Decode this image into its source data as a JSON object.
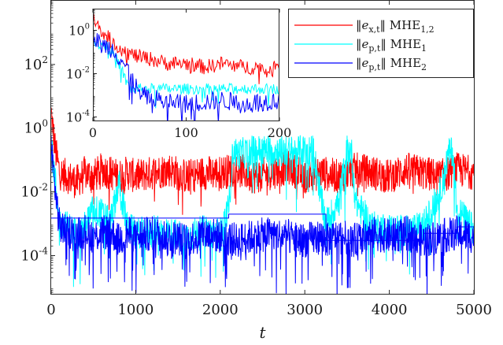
{
  "chart_data": [
    {
      "type": "line",
      "role": "main",
      "xlabel": "t",
      "ylabel": "",
      "xlim": [
        0,
        5000
      ],
      "ylim_log10": [
        -5.2,
        4
      ],
      "yscale": "log",
      "x_ticks": [
        "0",
        "1000",
        "2000",
        "3000",
        "4000",
        "5000"
      ],
      "y_ticks": [
        {
          "base": "10",
          "exp": "2"
        },
        {
          "base": "10",
          "exp": "0"
        },
        {
          "base": "10",
          "exp": "-2"
        },
        {
          "base": "10",
          "exp": "-4"
        }
      ],
      "grid": false,
      "legend_position": "top-right",
      "series": [
        {
          "name": "‖e_x,t‖ MHE_1,2",
          "color": "#ff0000",
          "x": [
            0,
            50,
            100,
            200,
            300,
            400,
            500,
            600,
            700,
            800,
            900,
            1000,
            1200,
            1400,
            1600,
            1800,
            2000,
            2200,
            2400,
            2600,
            2800,
            3000,
            3200,
            3400,
            3600,
            3800,
            4000,
            4200,
            4400,
            4600,
            4800,
            5000
          ],
          "y": [
            3,
            0.2,
            0.04,
            0.03,
            0.02,
            0.04,
            0.03,
            0.05,
            0.04,
            0.03,
            0.04,
            0.03,
            0.04,
            0.05,
            0.03,
            0.04,
            0.04,
            0.05,
            0.03,
            0.04,
            0.06,
            0.03,
            0.04,
            0.03,
            0.05,
            0.04,
            0.03,
            0.05,
            0.04,
            0.03,
            0.05,
            0.04
          ]
        },
        {
          "name": "‖e_p,t‖ MHE_1",
          "color": "#00ffff",
          "x": [
            0,
            50,
            100,
            200,
            300,
            400,
            500,
            600,
            700,
            800,
            900,
            1000,
            1200,
            1400,
            1600,
            1800,
            2000,
            2100,
            2150,
            2200,
            2400,
            2600,
            2800,
            3000,
            3100,
            3200,
            3250,
            3400,
            3500,
            3550,
            3600,
            3800,
            4000,
            4200,
            4400,
            4600,
            4700,
            4750,
            4800,
            5000
          ],
          "y": [
            0.3,
            0.02,
            0.001,
            0.0008,
            0.0005,
            0.0008,
            0.003,
            0.002,
            0.001,
            0.02,
            0.0008,
            0.0005,
            0.0006,
            0.0005,
            0.0004,
            0.0006,
            0.0005,
            0.003,
            0.2,
            0.15,
            0.2,
            0.2,
            0.18,
            0.2,
            0.2,
            0.005,
            0.001,
            0.005,
            0.2,
            0.2,
            0.005,
            0.0008,
            0.0007,
            0.0006,
            0.0008,
            0.01,
            0.15,
            0.2,
            0.003,
            0.0006
          ]
        },
        {
          "name": "‖e_p,t‖ MHE_2",
          "color": "#0000ff",
          "x": [
            0,
            50,
            100,
            200,
            300,
            400,
            500,
            600,
            700,
            800,
            900,
            1000,
            1200,
            1400,
            1600,
            1800,
            2000,
            2200,
            2400,
            2600,
            2800,
            3000,
            3200,
            3250,
            3400,
            3600,
            3800,
            4000,
            4200,
            4400,
            4600,
            4800,
            5000
          ],
          "y": [
            0.3,
            0.01,
            0.0008,
            0.0006,
            0.0005,
            0.0006,
            0.0004,
            0.0005,
            0.0006,
            0.0003,
            0.0005,
            0.0004,
            0.0005,
            0.0004,
            0.0003,
            0.0005,
            0.0004,
            0.0003,
            0.0004,
            0.0005,
            0.0004,
            0.0003,
            0.0004,
            0.0003,
            0.0004,
            0.0003,
            0.0005,
            0.0004,
            0.0005,
            0.0003,
            0.0004,
            0.0005,
            0.0004
          ]
        },
        {
          "name": "",
          "color": "#0000ff",
          "step": true,
          "x": [
            0,
            300,
            600,
            900,
            2100,
            3200,
            3250,
            3600,
            3800,
            4400,
            4700,
            4800,
            5000
          ],
          "y": [
            0.0015,
            0.0015,
            0.0015,
            0.0015,
            0.002,
            0.002,
            0.0003,
            0.0003,
            0.0003,
            0.0005,
            0.0005,
            0.0008,
            0.0008
          ]
        }
      ]
    },
    {
      "type": "line",
      "role": "inset",
      "xlim": [
        0,
        200
      ],
      "ylim_log10": [
        -4.2,
        1
      ],
      "yscale": "log",
      "x_ticks": [
        "0",
        "100",
        "200"
      ],
      "y_ticks": [
        {
          "base": "10",
          "exp": "0"
        },
        {
          "base": "10",
          "exp": "-2"
        },
        {
          "base": "10",
          "exp": "-4"
        }
      ],
      "series": [
        {
          "name": "‖e_x,t‖ MHE_1,2",
          "color": "#ff0000",
          "x": [
            0,
            5,
            10,
            20,
            30,
            40,
            50,
            60,
            80,
            100,
            120,
            140,
            160,
            180,
            190,
            200
          ],
          "y": [
            3,
            2,
            1,
            0.3,
            0.15,
            0.08,
            0.06,
            0.05,
            0.03,
            0.03,
            0.02,
            0.03,
            0.02,
            0.02,
            0.01,
            0.05
          ]
        },
        {
          "name": "‖e_p,t‖ MHE_1",
          "color": "#00ffff",
          "x": [
            0,
            5,
            10,
            15,
            20,
            25,
            30,
            35,
            40
          ],
          "y": [
            0.3,
            0.25,
            0.2,
            0.2,
            0.1,
            0.05,
            0.02,
            0.005,
            0.002
          ]
        },
        {
          "name": "‖e_p,t‖ MHE_2",
          "color": "#0000ff",
          "x": [
            0,
            5,
            10,
            20,
            30,
            40,
            50,
            60,
            80,
            100,
            120,
            140,
            160,
            180,
            200
          ],
          "y": [
            0.3,
            0.3,
            0.2,
            0.15,
            0.05,
            0.01,
            0.001,
            0.0008,
            0.0005,
            0.0004,
            0.0005,
            0.0006,
            0.0004,
            0.0005,
            0.0006
          ]
        }
      ]
    }
  ],
  "legend": {
    "items": [
      {
        "norm": "e",
        "sub": "x,t",
        "method": "MHE",
        "msub": "1,2",
        "color": "#ff0000"
      },
      {
        "norm": "e",
        "sub": "p,t",
        "method": "MHE",
        "msub": "1",
        "color": "#00ffff"
      },
      {
        "norm": "e",
        "sub": "p,t",
        "method": "MHE",
        "msub": "2",
        "color": "#0000ff"
      }
    ]
  }
}
